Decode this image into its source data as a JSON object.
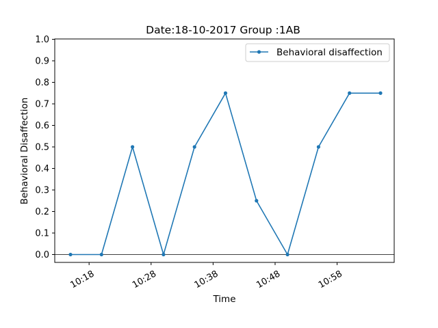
{
  "chart_data": {
    "type": "line",
    "title": "Date:18-10-2017 Group :1AB",
    "xlabel": "Time",
    "ylabel": "Behavioral Disaffection",
    "ylim": [
      0.0,
      1.0
    ],
    "y_ticks": [
      "0.0",
      "0.1",
      "0.2",
      "0.3",
      "0.4",
      "0.5",
      "0.6",
      "0.7",
      "0.8",
      "0.9",
      "1.0"
    ],
    "x_ticks": [
      "10:18",
      "10:28",
      "10:38",
      "10:48",
      "10:58"
    ],
    "grid": false,
    "legend_position": "top-right",
    "series": [
      {
        "name": "Behavioral disaffection",
        "color": "#1f77b4",
        "marker": "dot",
        "x": [
          "10:15",
          "10:20",
          "10:25",
          "10:30",
          "10:35",
          "10:40",
          "10:45",
          "10:50",
          "10:55",
          "11:00",
          "11:05"
        ],
        "values": [
          0.0,
          0.0,
          0.5,
          0.0,
          0.5,
          0.75,
          0.25,
          0.0,
          0.5,
          0.75,
          0.75
        ]
      }
    ]
  }
}
